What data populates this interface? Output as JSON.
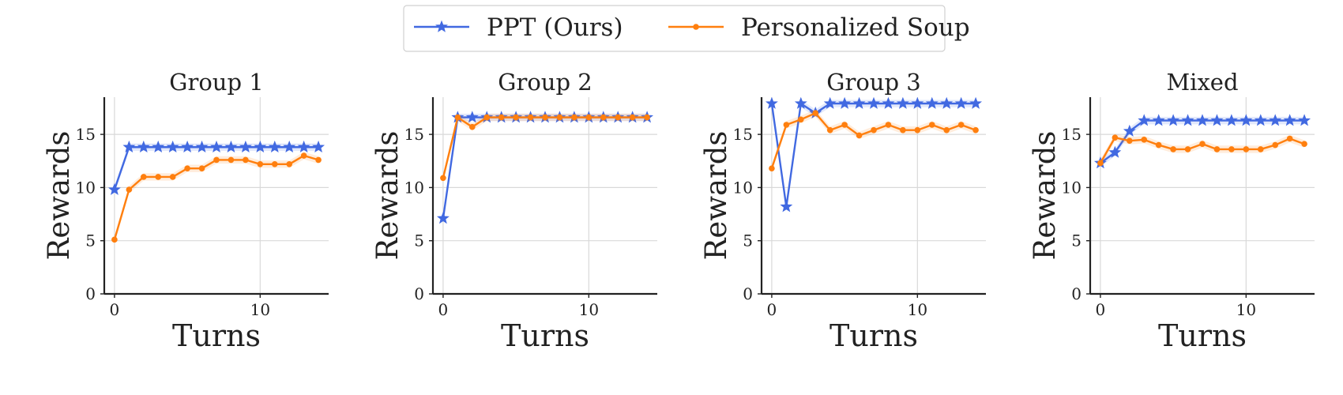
{
  "legend": [
    {
      "label": "PPT (Ours)",
      "color": "#4169e1",
      "marker": "star"
    },
    {
      "label": "Personalized Soup",
      "color": "#ff7f0e",
      "marker": "circle"
    }
  ],
  "chart_data": [
    {
      "type": "line",
      "title": "Group 1",
      "xlabel": "Turns",
      "ylabel": "Rewards",
      "x": [
        0,
        1,
        2,
        3,
        4,
        5,
        6,
        7,
        8,
        9,
        10,
        11,
        12,
        13,
        14
      ],
      "xlim": [
        -0.7,
        14.7
      ],
      "ylim": [
        0,
        18.5
      ],
      "xticks": [
        0,
        10
      ],
      "yticks": [
        0,
        5,
        10,
        15
      ],
      "grid": true,
      "series": [
        {
          "name": "PPT (Ours)",
          "values": [
            9.8,
            13.8,
            13.8,
            13.8,
            13.8,
            13.8,
            13.8,
            13.8,
            13.8,
            13.8,
            13.8,
            13.8,
            13.8,
            13.8,
            13.8
          ]
        },
        {
          "name": "Personalized Soup",
          "values": [
            5.1,
            9.8,
            11.0,
            11.0,
            11.0,
            11.8,
            11.8,
            12.6,
            12.6,
            12.6,
            12.2,
            12.2,
            12.2,
            13.0,
            12.6
          ]
        }
      ]
    },
    {
      "type": "line",
      "title": "Group 2",
      "xlabel": "Turns",
      "ylabel": "Rewards",
      "x": [
        0,
        1,
        2,
        3,
        4,
        5,
        6,
        7,
        8,
        9,
        10,
        11,
        12,
        13,
        14
      ],
      "xlim": [
        -0.7,
        14.7
      ],
      "ylim": [
        0,
        18.5
      ],
      "xticks": [
        0,
        10
      ],
      "yticks": [
        0,
        5,
        10,
        15
      ],
      "grid": true,
      "series": [
        {
          "name": "PPT (Ours)",
          "values": [
            7.1,
            16.6,
            16.6,
            16.6,
            16.6,
            16.6,
            16.6,
            16.6,
            16.6,
            16.6,
            16.6,
            16.6,
            16.6,
            16.6,
            16.6
          ]
        },
        {
          "name": "Personalized Soup",
          "values": [
            10.9,
            16.6,
            15.7,
            16.6,
            16.6,
            16.6,
            16.6,
            16.6,
            16.6,
            16.6,
            16.6,
            16.6,
            16.6,
            16.6,
            16.6
          ]
        }
      ]
    },
    {
      "type": "line",
      "title": "Group 3",
      "xlabel": "Turns",
      "ylabel": "Rewards",
      "x": [
        0,
        1,
        2,
        3,
        4,
        5,
        6,
        7,
        8,
        9,
        10,
        11,
        12,
        13,
        14
      ],
      "xlim": [
        -0.7,
        14.7
      ],
      "ylim": [
        0,
        18.5
      ],
      "xticks": [
        0,
        10
      ],
      "yticks": [
        0,
        5,
        10,
        15
      ],
      "grid": true,
      "series": [
        {
          "name": "PPT (Ours)",
          "values": [
            17.9,
            8.2,
            17.9,
            17.0,
            17.9,
            17.9,
            17.9,
            17.9,
            17.9,
            17.9,
            17.9,
            17.9,
            17.9,
            17.9,
            17.9
          ]
        },
        {
          "name": "Personalized Soup",
          "values": [
            11.8,
            15.9,
            16.4,
            17.0,
            15.4,
            15.9,
            14.9,
            15.4,
            15.9,
            15.4,
            15.4,
            15.9,
            15.4,
            15.9,
            15.4
          ]
        }
      ]
    },
    {
      "type": "line",
      "title": "Mixed",
      "xlabel": "Turns",
      "ylabel": "Rewards",
      "x": [
        0,
        1,
        2,
        3,
        4,
        5,
        6,
        7,
        8,
        9,
        10,
        11,
        12,
        13,
        14
      ],
      "xlim": [
        -0.7,
        14.7
      ],
      "ylim": [
        0,
        18.5
      ],
      "xticks": [
        0,
        10
      ],
      "yticks": [
        0,
        5,
        10,
        15
      ],
      "grid": true,
      "series": [
        {
          "name": "PPT (Ours)",
          "values": [
            12.3,
            13.3,
            15.3,
            16.3,
            16.3,
            16.3,
            16.3,
            16.3,
            16.3,
            16.3,
            16.3,
            16.3,
            16.3,
            16.3,
            16.3
          ]
        },
        {
          "name": "Personalized Soup",
          "values": [
            12.3,
            14.7,
            14.4,
            14.5,
            14.0,
            13.6,
            13.6,
            14.1,
            13.6,
            13.6,
            13.6,
            13.6,
            14.0,
            14.6,
            14.1
          ]
        }
      ]
    }
  ]
}
